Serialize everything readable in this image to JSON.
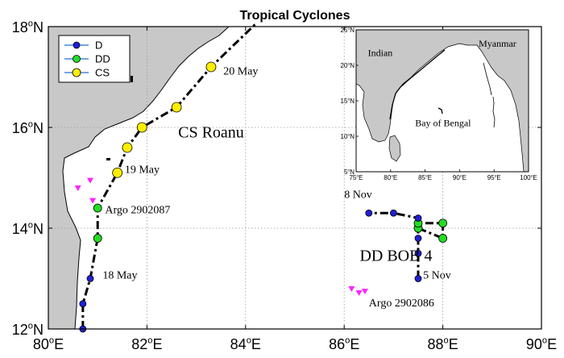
{
  "title": "Tropical Cyclones",
  "axes": {
    "lon_range": [
      80,
      90
    ],
    "lat_range": [
      12,
      18
    ],
    "x_ticks": [
      {
        "lon": 80,
        "num": "80",
        "suffix": "E"
      },
      {
        "lon": 82,
        "num": "82",
        "suffix": "E"
      },
      {
        "lon": 84,
        "num": "84",
        "suffix": "E"
      },
      {
        "lon": 86,
        "num": "86",
        "suffix": "E"
      },
      {
        "lon": 88,
        "num": "88",
        "suffix": "E"
      },
      {
        "lon": 90,
        "num": "90",
        "suffix": "E"
      }
    ],
    "y_ticks": [
      {
        "lat": 12,
        "num": "12",
        "suffix": "N"
      },
      {
        "lat": 14,
        "num": "14",
        "suffix": "N"
      },
      {
        "lat": 16,
        "num": "16",
        "suffix": "N"
      },
      {
        "lat": 18,
        "num": "18",
        "suffix": "N"
      }
    ],
    "deg": "o"
  },
  "legend": {
    "position": "top-left",
    "items": [
      {
        "label": "D",
        "color": "#1f1fd6"
      },
      {
        "label": "DD",
        "color": "#22dd22"
      },
      {
        "label": "CS",
        "color": "#ffee00"
      }
    ]
  },
  "tracks": [
    {
      "name": "CS Roanu",
      "label_lon": 83.3,
      "label_lat": 15.8,
      "points": [
        {
          "lon": 80.7,
          "lat": 12.0,
          "cat": "D"
        },
        {
          "lon": 80.7,
          "lat": 12.5,
          "cat": "D"
        },
        {
          "lon": 80.85,
          "lat": 13.0,
          "cat": "D"
        },
        {
          "lon": 81.0,
          "lat": 13.8,
          "cat": "DD"
        },
        {
          "lon": 81.0,
          "lat": 14.4,
          "cat": "DD"
        },
        {
          "lon": 81.4,
          "lat": 15.1,
          "cat": "CS"
        },
        {
          "lon": 81.6,
          "lat": 15.6,
          "cat": "CS"
        },
        {
          "lon": 81.9,
          "lat": 16.0,
          "cat": "CS"
        },
        {
          "lon": 82.6,
          "lat": 16.4,
          "cat": "CS"
        },
        {
          "lon": 83.3,
          "lat": 17.2,
          "cat": "CS"
        },
        {
          "lon": 84.2,
          "lat": 18.05,
          "cat": ""
        }
      ]
    },
    {
      "name": "DD BOB 4",
      "label_lon": 87.05,
      "label_lat": 13.35,
      "points": [
        {
          "lon": 87.5,
          "lat": 13.0,
          "cat": "D"
        },
        {
          "lon": 87.5,
          "lat": 13.5,
          "cat": "D"
        },
        {
          "lon": 87.5,
          "lat": 13.8,
          "cat": "D"
        },
        {
          "lon": 87.5,
          "lat": 14.0,
          "cat": "DD"
        },
        {
          "lon": 88.0,
          "lat": 13.8,
          "cat": "DD"
        },
        {
          "lon": 88.0,
          "lat": 14.1,
          "cat": "DD"
        },
        {
          "lon": 87.5,
          "lat": 14.1,
          "cat": "DD"
        },
        {
          "lon": 87.5,
          "lat": 14.2,
          "cat": "D"
        },
        {
          "lon": 87.0,
          "lat": 14.3,
          "cat": "D"
        },
        {
          "lon": 86.5,
          "lat": 14.3,
          "cat": "D"
        }
      ]
    }
  ],
  "date_labels": [
    {
      "text": "20 May",
      "lon": 83.55,
      "lat": 17.05
    },
    {
      "text": "19 May",
      "lon": 81.55,
      "lat": 15.1
    },
    {
      "text": "18 May",
      "lon": 81.1,
      "lat": 13.0
    },
    {
      "text": "8 Nov",
      "lon": 86.0,
      "lat": 14.6
    },
    {
      "text": "5 Nov",
      "lon": 87.6,
      "lat": 13.0
    }
  ],
  "argo": [
    {
      "label": "Argo 2902087",
      "label_lon": 81.15,
      "label_lat": 14.3,
      "floats": [
        {
          "lon": 80.6,
          "lat": 14.8
        },
        {
          "lon": 80.85,
          "lat": 14.95
        },
        {
          "lon": 80.9,
          "lat": 14.55
        }
      ]
    },
    {
      "label": "Argo 2902086",
      "label_lon": 86.5,
      "label_lat": 12.45,
      "floats": [
        {
          "lon": 86.15,
          "lat": 12.8
        },
        {
          "lon": 86.3,
          "lat": 12.72
        },
        {
          "lon": 86.42,
          "lat": 12.75
        }
      ]
    }
  ],
  "inset": {
    "lon_range": [
      75,
      100
    ],
    "lat_range": [
      5,
      25
    ],
    "x_ticks": [
      {
        "lon": 75,
        "num": "75",
        "suffix": "E"
      },
      {
        "lon": 80,
        "num": "80",
        "suffix": "E"
      },
      {
        "lon": 85,
        "num": "85",
        "suffix": "E"
      },
      {
        "lon": 90,
        "num": "90",
        "suffix": "E"
      },
      {
        "lon": 95,
        "num": "95",
        "suffix": "E"
      },
      {
        "lon": 100,
        "num": "100",
        "suffix": "E"
      }
    ],
    "y_ticks": [
      {
        "lat": 5,
        "num": "5",
        "suffix": "N"
      },
      {
        "lat": 10,
        "num": "10",
        "suffix": "N"
      },
      {
        "lat": 15,
        "num": "15",
        "suffix": "N"
      },
      {
        "lat": 20,
        "num": "20",
        "suffix": "N"
      },
      {
        "lat": 25,
        "num": "25",
        "suffix": "N"
      }
    ],
    "labels": [
      {
        "text": "Indian",
        "lon": 78.5,
        "lat": 21.3
      },
      {
        "text": "Myanmar",
        "lon": 95.5,
        "lat": 22.6
      },
      {
        "text": "Bay of Bengal",
        "lon": 87.6,
        "lat": 11.4
      }
    ]
  },
  "colors": {
    "land": "#c8c8c8",
    "coast": "#000000",
    "grid": "#9a9a9a",
    "argo": "#ff22ff",
    "track": "#000000"
  }
}
